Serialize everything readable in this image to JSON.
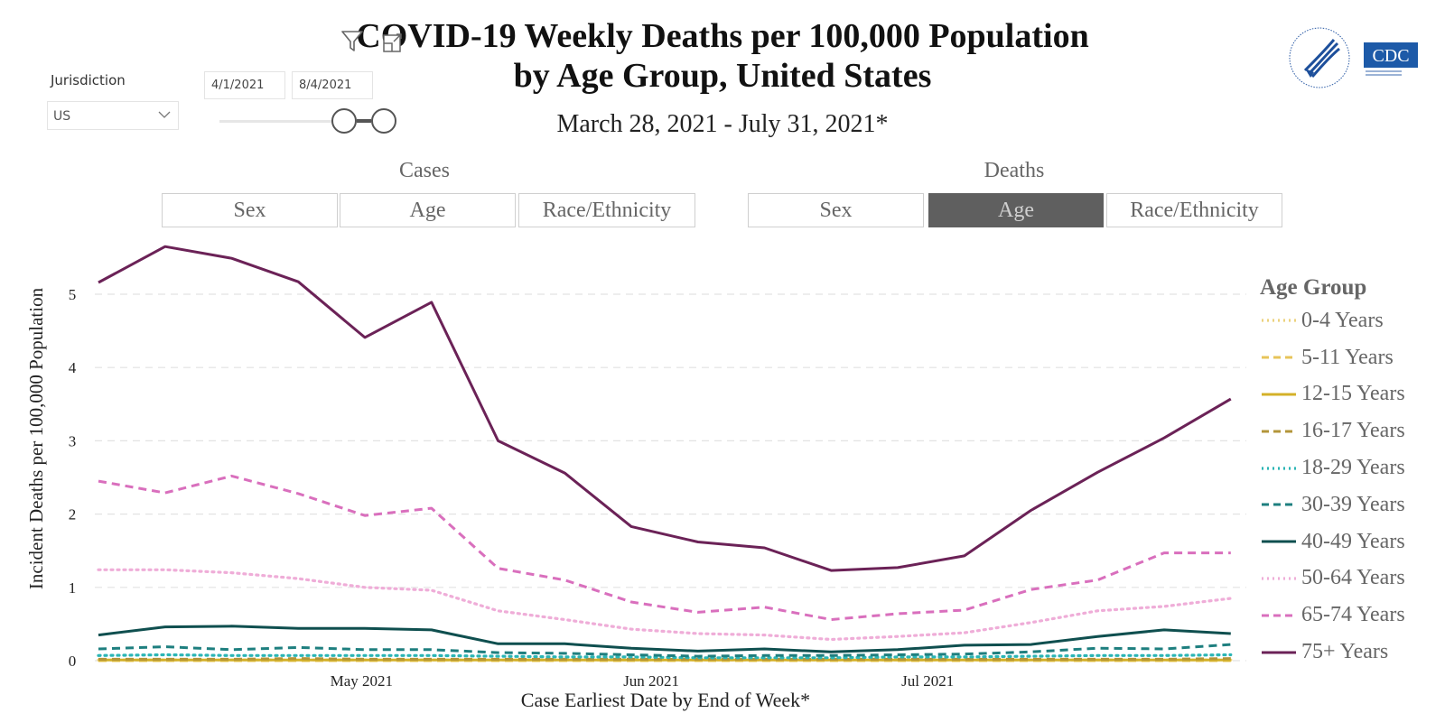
{
  "header": {
    "title_line1": "COVID-19 Weekly Deaths per 100,000 Population",
    "title_line2": "by Age Group, United States",
    "subtitle": "March 28, 2021 - July 31, 2021*"
  },
  "toolbar": {
    "filter_icon": "filter-icon",
    "expand_icon": "focus-mode-icon"
  },
  "filters": {
    "jurisdiction_label": "Jurisdiction",
    "jurisdiction_value": "US",
    "date_start": "4/1/2021",
    "date_end": "8/4/2021"
  },
  "tabs": {
    "cases": {
      "label": "Cases",
      "buttons": [
        "Sex",
        "Age",
        "Race/Ethnicity"
      ]
    },
    "deaths": {
      "label": "Deaths",
      "buttons": [
        "Sex",
        "Age",
        "Race/Ethnicity"
      ],
      "active": "Age"
    }
  },
  "logos": {
    "hhs": "HHS eagle seal",
    "cdc": "CDC"
  },
  "colors": {
    "active_tab": "#5f5f5f",
    "75plus": "#6b2257",
    "65_74": "#d96fbd",
    "50_64": "#efadd8",
    "40_49": "#0f4f4f",
    "30_39": "#1e7f7f",
    "18_29": "#2bb5b5",
    "16_17": "#b3953a",
    "12_15": "#d4b128",
    "5_11": "#e7c45a",
    "0_4": "#ecd27e"
  },
  "chart_data": {
    "type": "line",
    "title": "COVID-19 Weekly Deaths per 100,000 Population by Age Group, United States",
    "subtitle": "March 28, 2021 - July 31, 2021*",
    "xlabel": "Case Earliest Date by End of Week*",
    "ylabel": "Incident Deaths per 100,000 Population",
    "ylim": [
      0,
      5.8
    ],
    "yticks": [
      0,
      1,
      2,
      3,
      4,
      5
    ],
    "xticks": [
      {
        "label": "May 2021",
        "week_index": 3.95
      },
      {
        "label": "Jun 2021",
        "week_index": 8.3
      },
      {
        "label": "Jul 2021",
        "week_index": 12.45
      }
    ],
    "grid": true,
    "legend_title": "Age Group",
    "legend_position": "right",
    "x": [
      "2021-04-03",
      "2021-04-10",
      "2021-04-17",
      "2021-04-24",
      "2021-05-01",
      "2021-05-08",
      "2021-05-15",
      "2021-05-22",
      "2021-05-29",
      "2021-06-05",
      "2021-06-12",
      "2021-06-19",
      "2021-06-26",
      "2021-07-03",
      "2021-07-10",
      "2021-07-17",
      "2021-07-24",
      "2021-07-31"
    ],
    "series": [
      {
        "name": "0-4 Years",
        "style": "dotted",
        "color": "#ecd27e",
        "values": [
          0.01,
          0.01,
          0.01,
          0.01,
          0.01,
          0.01,
          0.01,
          0.01,
          0.01,
          0.01,
          0.01,
          0.01,
          0.01,
          0.01,
          0.01,
          0.01,
          0.01,
          0.01
        ]
      },
      {
        "name": "5-11 Years",
        "style": "dashed",
        "color": "#e7c45a",
        "values": [
          0.0,
          0.0,
          0.0,
          0.0,
          0.0,
          0.0,
          0.0,
          0.0,
          0.0,
          0.0,
          0.0,
          0.0,
          0.0,
          0.0,
          0.0,
          0.0,
          0.0,
          0.0
        ]
      },
      {
        "name": "12-15 Years",
        "style": "solid",
        "color": "#d4b128",
        "values": [
          0.01,
          0.01,
          0.01,
          0.01,
          0.01,
          0.01,
          0.01,
          0.01,
          0.01,
          0.01,
          0.01,
          0.01,
          0.01,
          0.01,
          0.01,
          0.01,
          0.01,
          0.01
        ]
      },
      {
        "name": "16-17 Years",
        "style": "dashed",
        "color": "#b3953a",
        "values": [
          0.02,
          0.02,
          0.02,
          0.03,
          0.02,
          0.02,
          0.02,
          0.02,
          0.02,
          0.02,
          0.02,
          0.02,
          0.02,
          0.02,
          0.02,
          0.02,
          0.02,
          0.03
        ]
      },
      {
        "name": "18-29 Years",
        "style": "dotted",
        "color": "#2bb5b5",
        "values": [
          0.07,
          0.08,
          0.07,
          0.07,
          0.07,
          0.07,
          0.06,
          0.05,
          0.05,
          0.04,
          0.04,
          0.04,
          0.05,
          0.05,
          0.06,
          0.07,
          0.07,
          0.08
        ]
      },
      {
        "name": "30-39 Years",
        "style": "dashed",
        "color": "#1e7f7f",
        "values": [
          0.16,
          0.19,
          0.15,
          0.18,
          0.15,
          0.15,
          0.11,
          0.1,
          0.08,
          0.06,
          0.07,
          0.07,
          0.08,
          0.09,
          0.12,
          0.17,
          0.16,
          0.22
        ]
      },
      {
        "name": "40-49 Years",
        "style": "solid",
        "color": "#0f4f4f",
        "values": [
          0.35,
          0.46,
          0.47,
          0.44,
          0.44,
          0.42,
          0.23,
          0.23,
          0.17,
          0.13,
          0.16,
          0.12,
          0.15,
          0.21,
          0.22,
          0.33,
          0.42,
          0.37
        ]
      },
      {
        "name": "50-64 Years",
        "style": "dotted",
        "color": "#efadd8",
        "values": [
          1.24,
          1.24,
          1.2,
          1.12,
          1.0,
          0.96,
          0.68,
          0.56,
          0.43,
          0.37,
          0.35,
          0.29,
          0.33,
          0.38,
          0.52,
          0.68,
          0.74,
          0.85
        ]
      },
      {
        "name": "65-74 Years",
        "style": "dashed",
        "color": "#d96fbd",
        "values": [
          2.45,
          2.29,
          2.52,
          2.28,
          1.98,
          2.08,
          1.26,
          1.1,
          0.8,
          0.66,
          0.73,
          0.56,
          0.64,
          0.69,
          0.97,
          1.1,
          1.47,
          1.47
        ]
      },
      {
        "name": "75+ Years",
        "style": "solid",
        "color": "#6b2257",
        "values": [
          5.16,
          5.65,
          5.49,
          5.17,
          4.41,
          4.89,
          3.0,
          2.56,
          1.83,
          1.62,
          1.54,
          1.23,
          1.27,
          1.43,
          2.05,
          2.57,
          3.04,
          3.57
        ]
      }
    ]
  }
}
